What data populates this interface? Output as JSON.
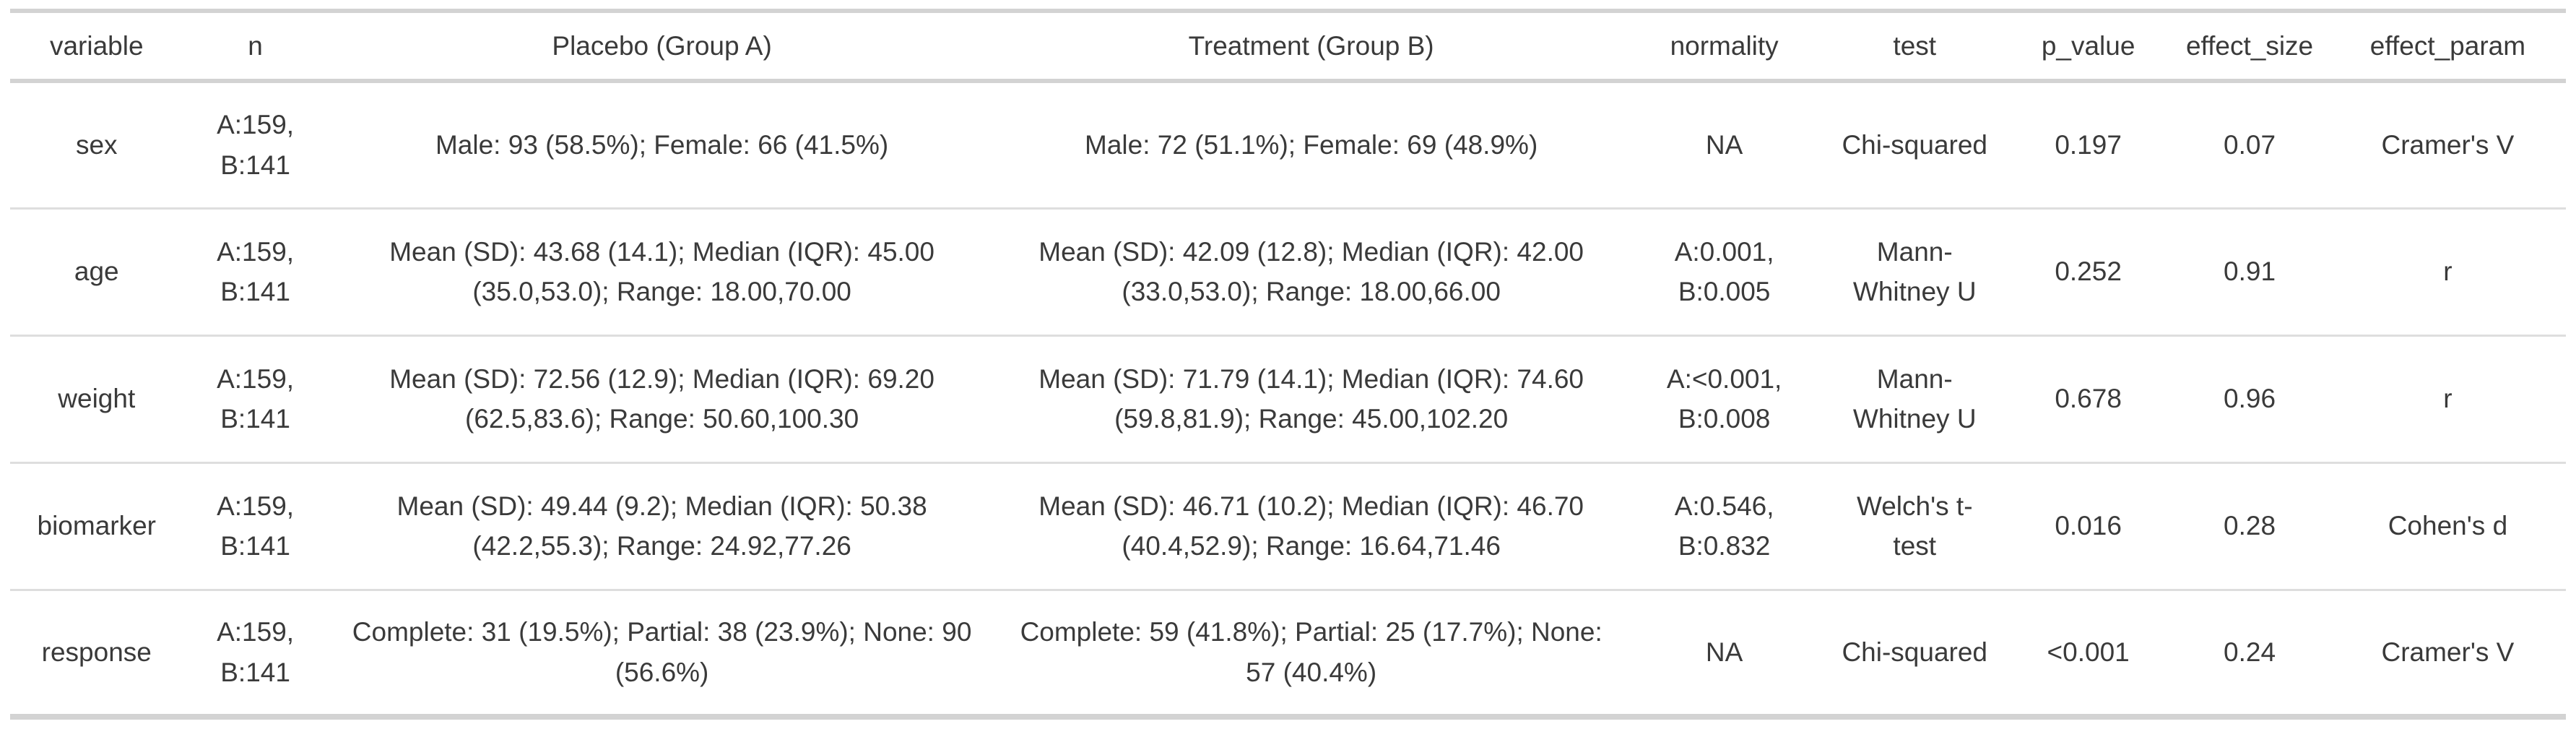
{
  "colors": {
    "background": "#ffffff",
    "text": "#3a3a3a",
    "border_strong": "#d3d3d3",
    "border_light": "#dedede"
  },
  "table": {
    "columns": [
      "variable",
      "n",
      "Placebo (Group A)",
      "Treatment (Group B)",
      "normality",
      "test",
      "p_value",
      "effect_size",
      "effect_param"
    ],
    "rows": [
      [
        "sex",
        "A:159, B:141",
        "Male: 93 (58.5%); Female: 66 (41.5%)",
        "Male: 72 (51.1%); Female: 69 (48.9%)",
        "NA",
        "Chi-squared",
        "0.197",
        "0.07",
        "Cramer's V"
      ],
      [
        "age",
        "A:159, B:141",
        "Mean (SD): 43.68 (14.1); Median (IQR): 45.00 (35.0,53.0); Range: 18.00,70.00",
        "Mean (SD): 42.09 (12.8); Median (IQR): 42.00 (33.0,53.0); Range: 18.00,66.00",
        "A:0.001, B:0.005",
        "Mann-Whitney U",
        "0.252",
        "0.91",
        "r"
      ],
      [
        "weight",
        "A:159, B:141",
        "Mean (SD): 72.56 (12.9); Median (IQR): 69.20 (62.5,83.6); Range: 50.60,100.30",
        "Mean (SD): 71.79 (14.1); Median (IQR): 74.60 (59.8,81.9); Range: 45.00,102.20",
        "A:<0.001, B:0.008",
        "Mann-Whitney U",
        "0.678",
        "0.96",
        "r"
      ],
      [
        "biomarker",
        "A:159, B:141",
        "Mean (SD): 49.44 (9.2); Median (IQR): 50.38 (42.2,55.3); Range: 24.92,77.26",
        "Mean (SD): 46.71 (10.2); Median (IQR): 46.70 (40.4,52.9); Range: 16.64,71.46",
        "A:0.546, B:0.832",
        "Welch's t-test",
        "0.016",
        "0.28",
        "Cohen's d"
      ],
      [
        "response",
        "A:159, B:141",
        "Complete: 31 (19.5%); Partial: 38 (23.9%); None: 90 (56.6%)",
        "Complete: 59 (41.8%); Partial: 25 (17.7%); None: 57 (40.4%)",
        "NA",
        "Chi-squared",
        "<0.001",
        "0.24",
        "Cramer's V"
      ]
    ]
  }
}
